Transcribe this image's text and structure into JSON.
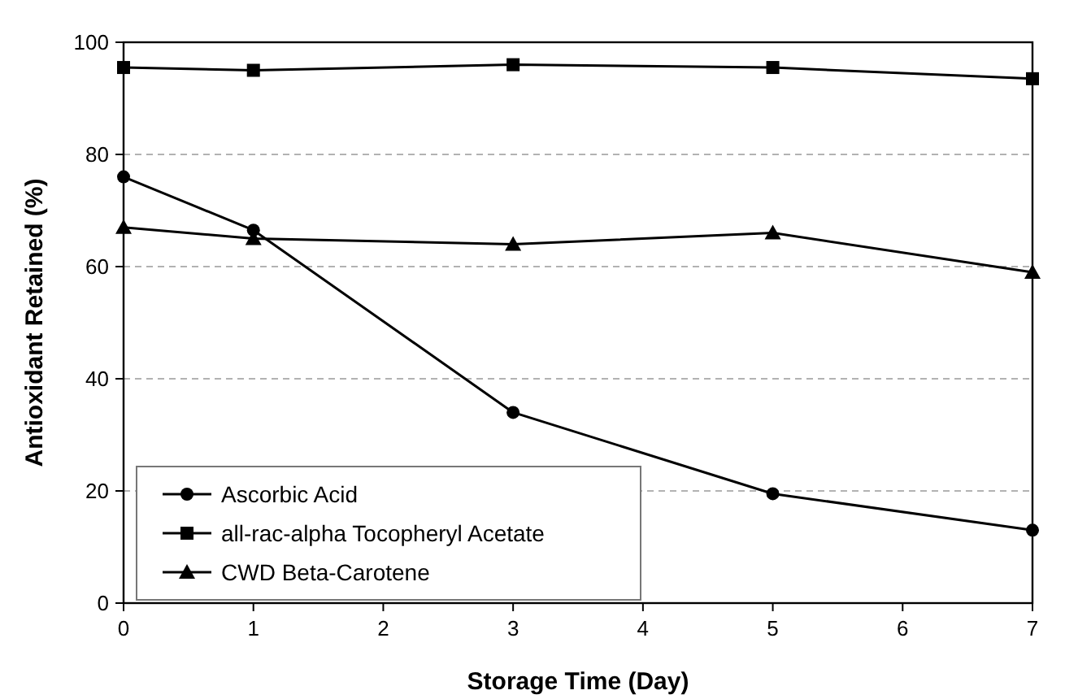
{
  "chart_data": {
    "type": "line",
    "xlabel": "Storage Time (Day)",
    "ylabel": "Antioxidant Retained (%)",
    "x": [
      0,
      1,
      3,
      5,
      7
    ],
    "series": [
      {
        "name": "Ascorbic Acid",
        "color": "#000000",
        "marker": "circle",
        "values": [
          76,
          66.5,
          34,
          19.5,
          13
        ]
      },
      {
        "name": "all-rac-alpha Tocopheryl Acetate",
        "color": "#000000",
        "marker": "square",
        "values": [
          95.5,
          95,
          96,
          95.5,
          93.5
        ]
      },
      {
        "name": "CWD Beta-Carotene",
        "color": "#000000",
        "marker": "triangle",
        "values": [
          67,
          65,
          64,
          66,
          59
        ]
      }
    ],
    "xlim": [
      0,
      7
    ],
    "xticks": [
      0,
      1,
      2,
      3,
      4,
      5,
      6,
      7
    ],
    "ylim": [
      0,
      100
    ],
    "yticks": [
      0,
      20,
      40,
      60,
      80,
      100
    ],
    "grid": "y",
    "legend": "bottom left",
    "line_style": "solid"
  }
}
